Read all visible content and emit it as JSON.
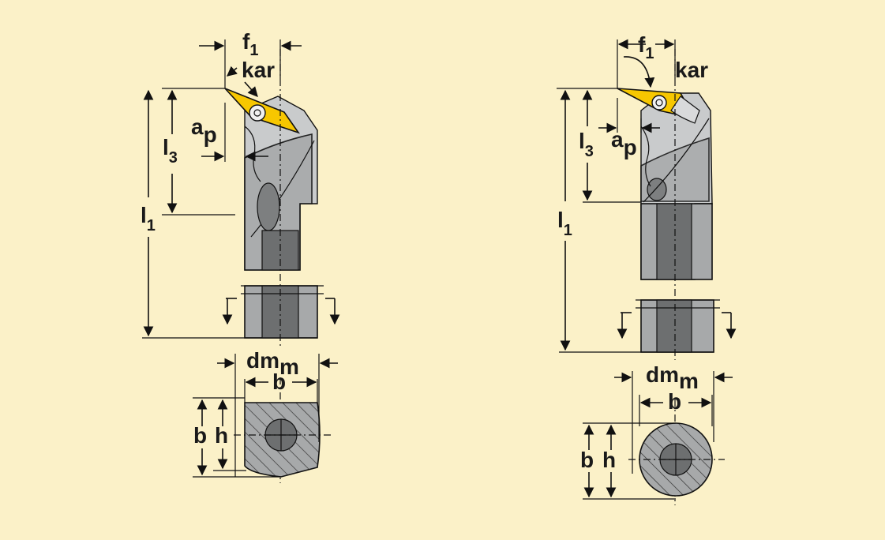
{
  "background_color": "#fbf1c8",
  "insert_color": "#f7c700",
  "body_color": "#a7a9aa",
  "core_color": "#6d6f70",
  "tools": [
    {
      "labels": {
        "f": "f",
        "f_sub": "1",
        "kar": "kar",
        "ap": "a",
        "ap_sub": "p",
        "l3": "l",
        "l3_sub": "3",
        "l1": "l",
        "l1_sub": "1",
        "dmm": "dm",
        "dmm_sub": "m",
        "b_top": "b",
        "b_side": "b",
        "h": "h"
      }
    },
    {
      "labels": {
        "f": "f",
        "f_sub": "1",
        "kar": "kar",
        "ap": "a",
        "ap_sub": "p",
        "l3": "l",
        "l3_sub": "3",
        "l1": "l",
        "l1_sub": "1",
        "dmm": "dm",
        "dmm_sub": "m",
        "b_top": "b",
        "b_side": "b",
        "h": "h"
      }
    }
  ]
}
